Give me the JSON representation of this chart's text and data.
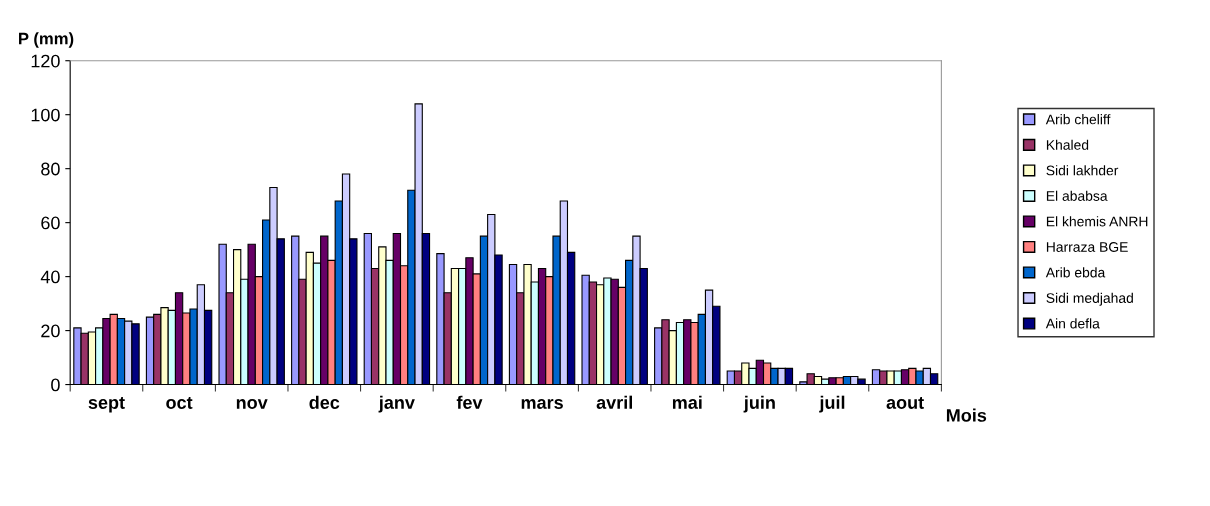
{
  "chart_data": {
    "type": "bar",
    "ylabel": "P (mm)",
    "xlabel": "Mois",
    "categories": [
      "sept",
      "oct",
      "nov",
      "dec",
      "janv",
      "fev",
      "mars",
      "avril",
      "mai",
      "juin",
      "juil",
      "aout"
    ],
    "ylim": [
      0,
      120
    ],
    "yticks": [
      0,
      20,
      40,
      60,
      80,
      100,
      120
    ],
    "grid": false,
    "legend": "right",
    "series": [
      {
        "name": "Arib cheliff",
        "color": "#9999ff",
        "values": [
          21,
          25,
          52,
          55,
          56,
          48.5,
          44.5,
          40.5,
          21,
          5,
          1,
          5.5
        ]
      },
      {
        "name": "Khaled",
        "color": "#993366",
        "values": [
          19,
          26,
          34,
          39,
          43,
          34,
          34,
          38,
          24,
          5,
          4,
          5
        ]
      },
      {
        "name": "Sidi lakhder",
        "color": "#ffffcc",
        "values": [
          19.5,
          28.5,
          50,
          49,
          51,
          43,
          44.5,
          37,
          20,
          8,
          3,
          5
        ]
      },
      {
        "name": "El ababsa",
        "color": "#ccffff",
        "values": [
          21,
          27.5,
          39,
          45,
          46,
          43,
          38,
          39.5,
          23,
          6,
          2,
          5
        ]
      },
      {
        "name": "El khemis ANRH",
        "color": "#660066",
        "values": [
          24.5,
          34,
          52,
          55,
          56,
          47,
          43,
          39,
          24,
          9,
          2.5,
          5.5
        ]
      },
      {
        "name": "Harraza BGE",
        "color": "#ff8080",
        "values": [
          26,
          26.5,
          40,
          46,
          44,
          41,
          40,
          36,
          23,
          8,
          2.5,
          6
        ]
      },
      {
        "name": "Arib ebda",
        "color": "#0066cc",
        "values": [
          24.5,
          28,
          61,
          68,
          72,
          55,
          55,
          46,
          26,
          6,
          3,
          5
        ]
      },
      {
        "name": "Sidi medjahad",
        "color": "#ccccff",
        "values": [
          23.5,
          37,
          73,
          78,
          104,
          63,
          68,
          55,
          35,
          6,
          3,
          6
        ]
      },
      {
        "name": "Ain defla",
        "color": "#000080",
        "values": [
          22.5,
          27.5,
          54,
          54,
          56,
          48,
          49,
          43,
          29,
          6,
          2,
          4
        ]
      }
    ]
  }
}
